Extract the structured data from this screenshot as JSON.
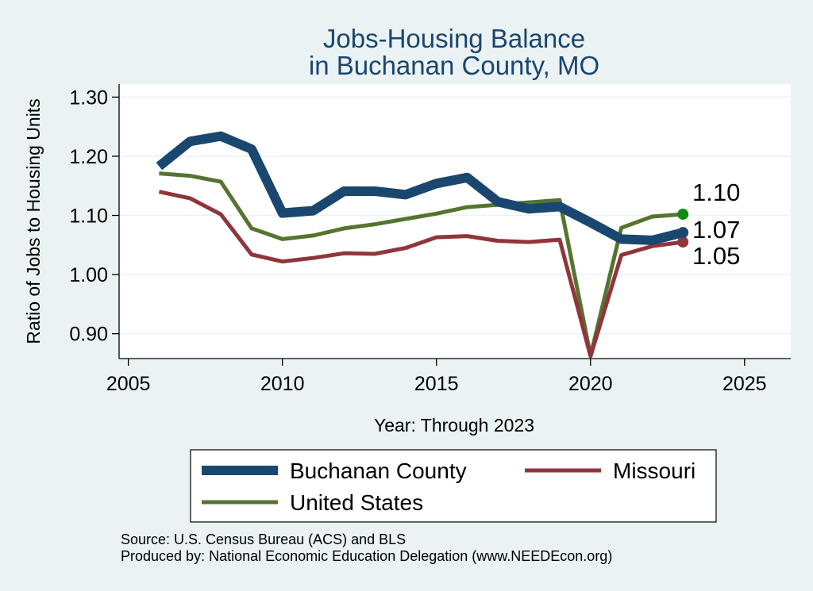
{
  "chart_data": {
    "type": "line",
    "title": [
      "Jobs-Housing Balance",
      "in Buchanan County, MO"
    ],
    "xlabel": "Year: Through 2023",
    "ylabel": "Ratio of Jobs to Housing Units",
    "xlim": [
      2004.7,
      2026.5
    ],
    "ylim": [
      0.858,
      1.322
    ],
    "xticks": [
      2005,
      2010,
      2015,
      2020,
      2025
    ],
    "yticks": [
      0.9,
      1.0,
      1.1,
      1.2,
      1.3
    ],
    "ytick_labels": [
      "0.90",
      "1.00",
      "1.10",
      "1.20",
      "1.30"
    ],
    "grid": true,
    "legend_position": "bottom",
    "x": [
      2006,
      2007,
      2008,
      2009,
      2010,
      2011,
      2012,
      2013,
      2014,
      2015,
      2016,
      2017,
      2018,
      2019,
      2020,
      2021,
      2022,
      2023
    ],
    "series": [
      {
        "name": "Buchanan County",
        "color": "#1a476f",
        "width": 12,
        "values": [
          1.183,
          1.225,
          1.234,
          1.212,
          1.104,
          1.108,
          1.141,
          1.141,
          1.135,
          1.154,
          1.164,
          1.123,
          1.111,
          1.115,
          1.088,
          1.06,
          1.058,
          1.071
        ],
        "end_label": "1.07"
      },
      {
        "name": "Missouri",
        "color": "#90353b",
        "width": 5,
        "values": [
          1.14,
          1.129,
          1.102,
          1.034,
          1.022,
          1.028,
          1.036,
          1.035,
          1.045,
          1.063,
          1.065,
          1.057,
          1.055,
          1.059,
          0.862,
          1.033,
          1.048,
          1.055
        ],
        "end_label": "1.05"
      },
      {
        "name": "United States",
        "color": "#55752f",
        "width": 5,
        "values": [
          1.171,
          1.167,
          1.157,
          1.078,
          1.06,
          1.066,
          1.078,
          1.085,
          1.094,
          1.103,
          1.114,
          1.118,
          1.122,
          1.126,
          0.863,
          1.079,
          1.098,
          1.102
        ],
        "end_label": "1.10",
        "marker_color": "#128a12"
      }
    ],
    "legend": [
      {
        "series": 0,
        "col": 0,
        "row": 0
      },
      {
        "series": 1,
        "col": 1,
        "row": 0
      },
      {
        "series": 2,
        "col": 0,
        "row": 1
      }
    ],
    "notes": [
      "Source: U.S. Census Bureau (ACS) and BLS",
      "Produced by: National Economic Education Delegation (www.NEEDEcon.org)"
    ]
  }
}
